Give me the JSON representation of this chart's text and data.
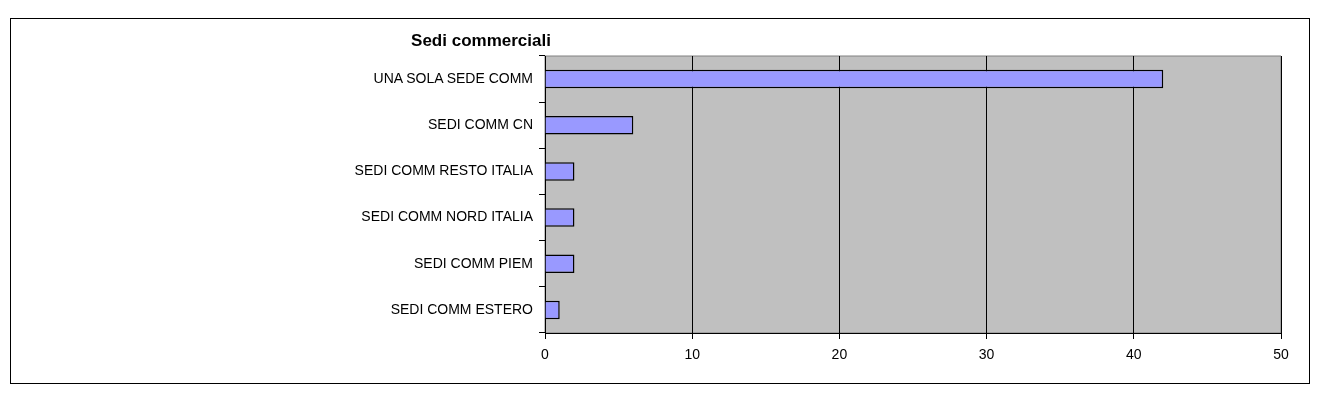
{
  "chart_data": {
    "type": "bar",
    "title": "Sedi commerciali",
    "orientation": "horizontal",
    "categories": [
      "UNA SOLA SEDE COMM",
      "SEDI COMM CN",
      "SEDI COMM RESTO ITALIA",
      "SEDI COMM NORD ITALIA",
      "SEDI COMM PIEM",
      "SEDI COMM ESTERO"
    ],
    "values": [
      42,
      6,
      2,
      2,
      2,
      1
    ],
    "color": "#9999ff",
    "xlim": [
      0,
      50
    ],
    "xticks": [
      0,
      10,
      20,
      30,
      40,
      50
    ],
    "grid": "x",
    "legend": false
  }
}
